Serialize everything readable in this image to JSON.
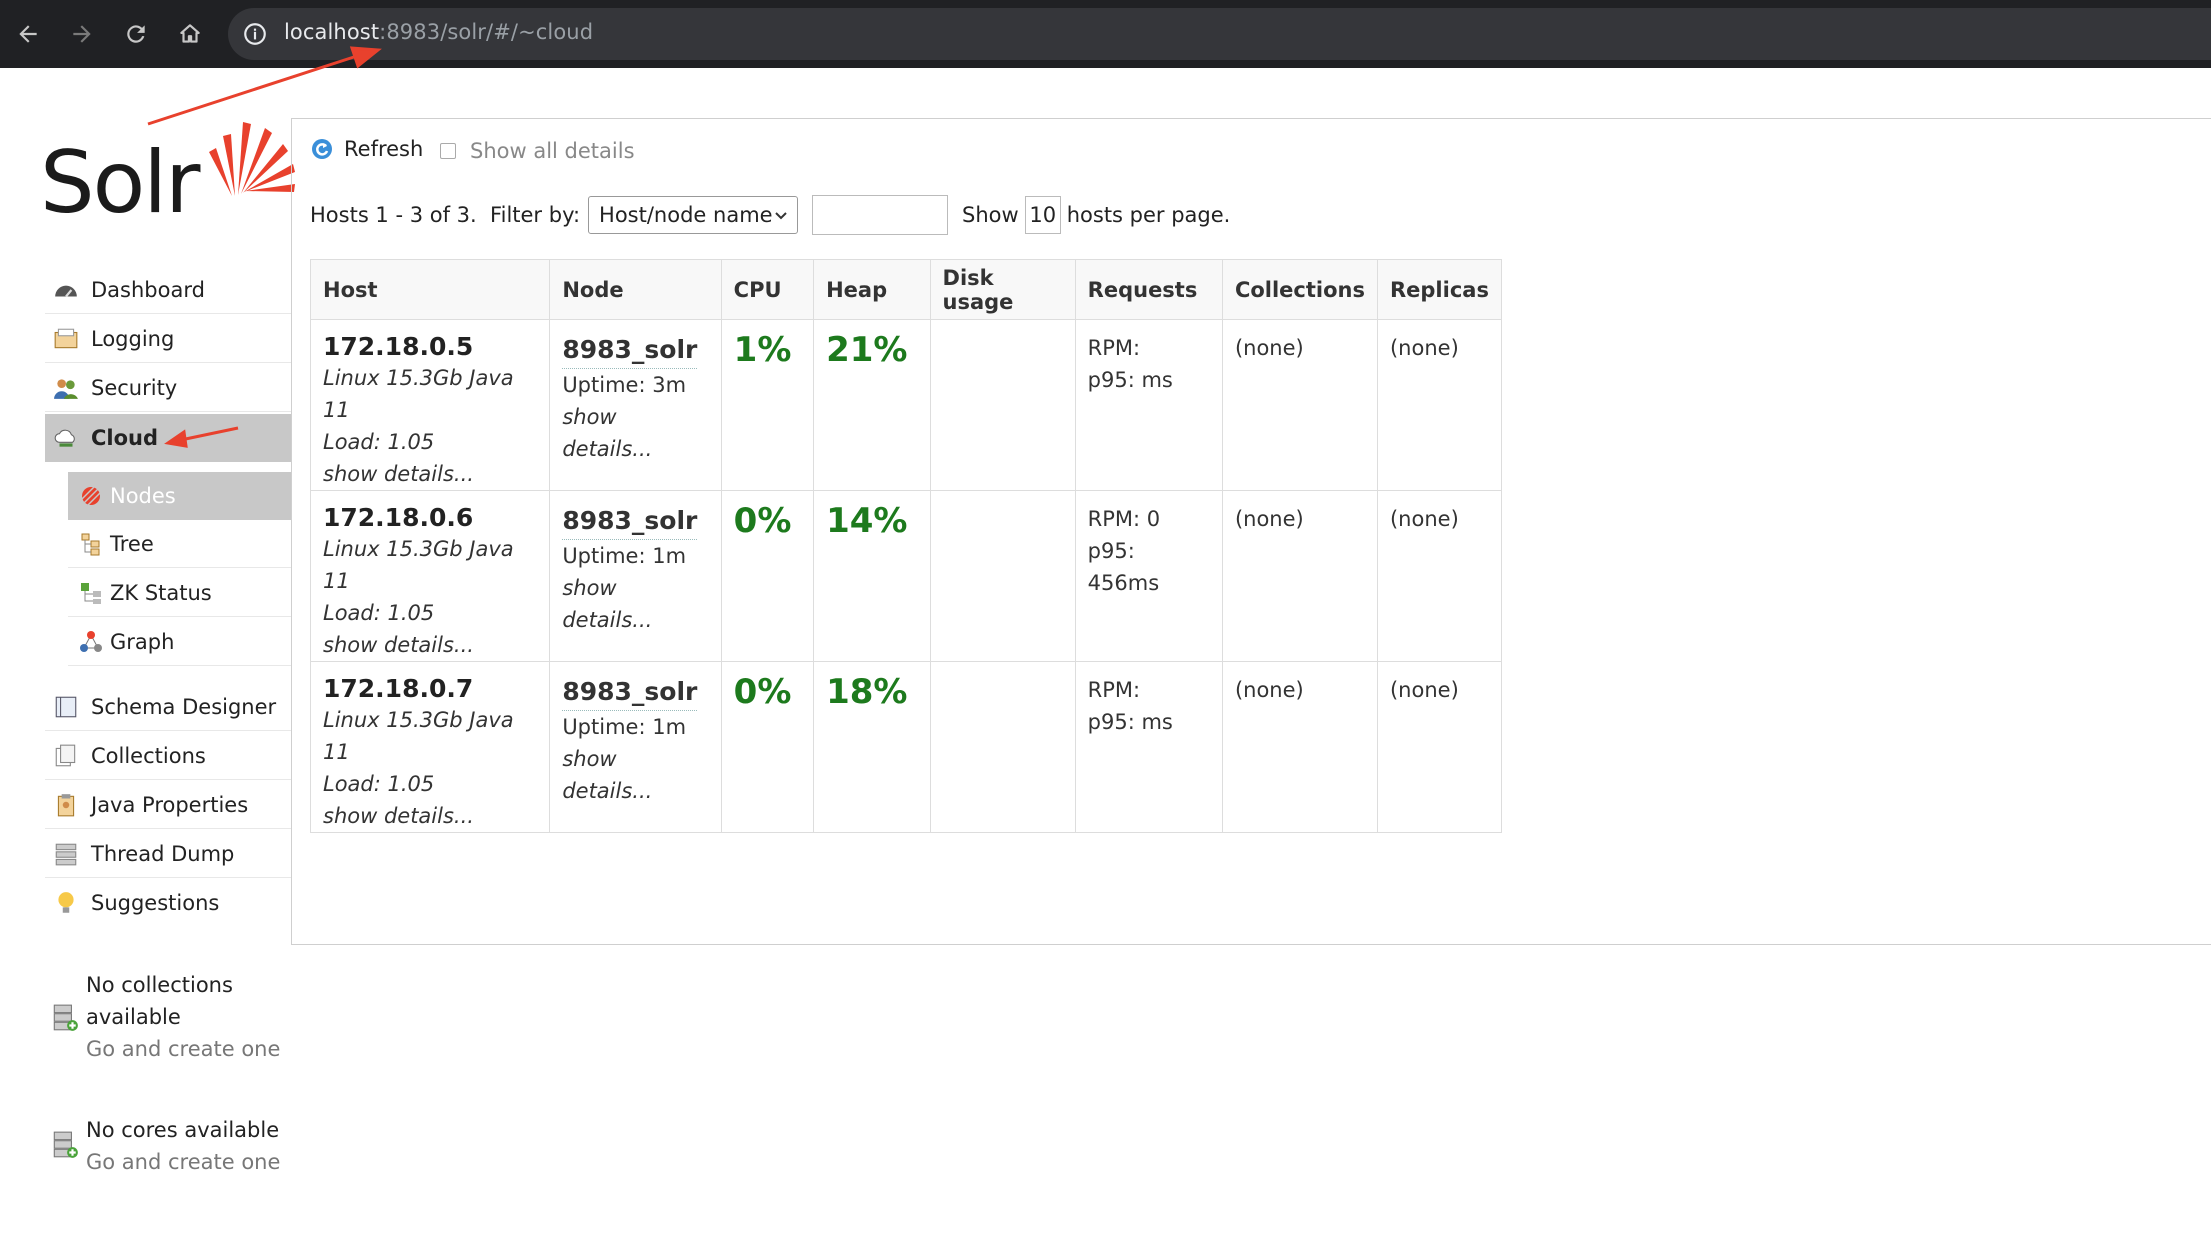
{
  "browser": {
    "url_host": "localhost",
    "url_rest": ":8983/solr/#/~cloud"
  },
  "logo": {
    "text": "Solr"
  },
  "nav": {
    "items": [
      {
        "label": "Dashboard"
      },
      {
        "label": "Logging"
      },
      {
        "label": "Security"
      },
      {
        "label": "Cloud"
      }
    ],
    "cloud_sub": [
      {
        "label": "Nodes"
      },
      {
        "label": "Tree"
      },
      {
        "label": "ZK Status"
      },
      {
        "label": "Graph"
      }
    ],
    "more": [
      {
        "label": "Schema Designer"
      },
      {
        "label": "Collections"
      },
      {
        "label": "Java Properties"
      },
      {
        "label": "Thread Dump"
      },
      {
        "label": "Suggestions"
      }
    ]
  },
  "collections_note": {
    "line1": "No collections",
    "line2": "available",
    "link": "Go and create one"
  },
  "cores_note": {
    "line1": "No cores available",
    "link": "Go and create one"
  },
  "toolbar": {
    "refresh_label": "Refresh",
    "show_all_label": "Show all details"
  },
  "filter": {
    "hosts_label": "Hosts 1 - 3 of 3.  Filter by:",
    "select_value": "Host/node name",
    "input_value": "",
    "show_label": "Show",
    "per_page": "10",
    "per_page_suffix": "hosts per page."
  },
  "table": {
    "headers": [
      "Host",
      "Node",
      "CPU",
      "Heap",
      "Disk usage",
      "Requests",
      "Collections",
      "Replicas"
    ],
    "rows": [
      {
        "host": "172.18.0.5",
        "os": "Linux 15.3Gb Java 11",
        "load": "Load: 1.05",
        "host_details": "show details...",
        "node": "8983_solr",
        "uptime": "Uptime: 3m",
        "node_details": "show details...",
        "cpu": "1%",
        "heap": "21%",
        "disk": "",
        "rpm": "RPM:",
        "p95": "p95: ms",
        "collections": "(none)",
        "replicas": "(none)"
      },
      {
        "host": "172.18.0.6",
        "os": "Linux 15.3Gb Java 11",
        "load": "Load: 1.05",
        "host_details": "show details...",
        "node": "8983_solr",
        "uptime": "Uptime: 1m",
        "node_details": "show details...",
        "cpu": "0%",
        "heap": "14%",
        "disk": "",
        "rpm": "RPM: 0",
        "p95": "p95: 456ms",
        "collections": "(none)",
        "replicas": "(none)"
      },
      {
        "host": "172.18.0.7",
        "os": "Linux 15.3Gb Java 11",
        "load": "Load: 1.05",
        "host_details": "show details...",
        "node": "8983_solr",
        "uptime": "Uptime: 1m",
        "node_details": "show details...",
        "cpu": "0%",
        "heap": "18%",
        "disk": "",
        "rpm": "RPM:",
        "p95": "p95: ms",
        "collections": "(none)",
        "replicas": "(none)"
      }
    ]
  },
  "colors": {
    "accent_red": "#e8412d",
    "pct_green": "#1d7a1d",
    "active_bg": "#c8c8c8",
    "chrome_bg": "#202124"
  }
}
